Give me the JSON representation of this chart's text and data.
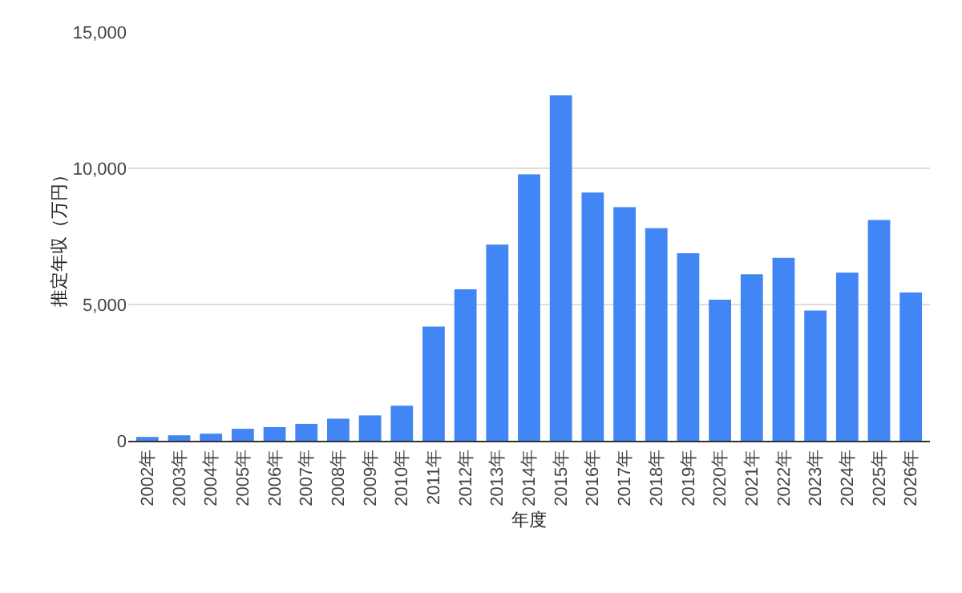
{
  "chart_data": {
    "type": "bar",
    "xlabel": "年度",
    "ylabel": "推定年収（万円）",
    "categories": [
      "2002年",
      "2003年",
      "2004年",
      "2005年",
      "2006年",
      "2007年",
      "2008年",
      "2009年",
      "2010年",
      "2011年",
      "2012年",
      "2013年",
      "2014年",
      "2015年",
      "2016年",
      "2017年",
      "2018年",
      "2019年",
      "2020年",
      "2021年",
      "2022年",
      "2023年",
      "2024年",
      "2025年",
      "2026年"
    ],
    "values": [
      140,
      200,
      260,
      440,
      500,
      620,
      810,
      930,
      1290,
      4190,
      5560,
      7200,
      9780,
      12680,
      9110,
      8570,
      7800,
      6880,
      5180,
      6110,
      6710,
      4780,
      6170,
      8100,
      5440
    ],
    "color": "#4285f4",
    "ylim": [
      0,
      15000
    ],
    "yticks": [
      {
        "value": 0,
        "label": "0"
      },
      {
        "value": 5000,
        "label": "5,000"
      },
      {
        "value": 10000,
        "label": "10,000"
      },
      {
        "value": 15000,
        "label": "15,000"
      }
    ],
    "grid": "y"
  }
}
